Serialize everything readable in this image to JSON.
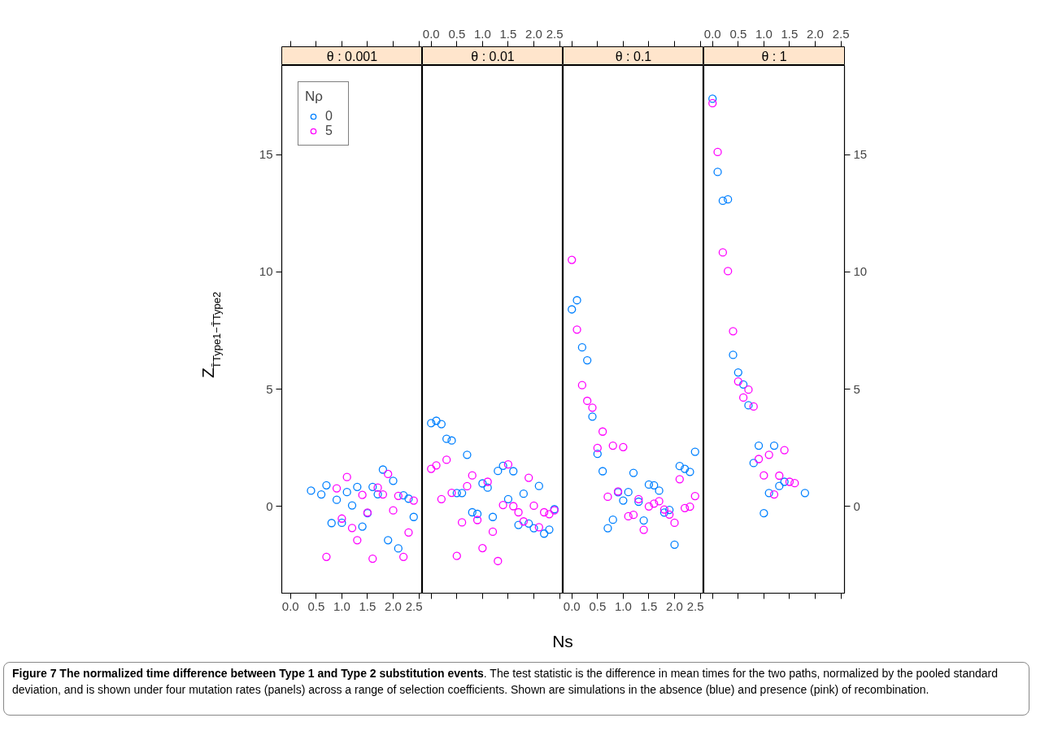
{
  "chart_data": [
    {
      "type": "scatter",
      "title": "θ : 0.001",
      "ylabel": "Z$_{T̄Type1−T̄Type2}$",
      "legend_title": "Nρ",
      "legend": "top left",
      "marker": "circle",
      "grid": false,
      "annotations": [
        "Figure 7 The normalized time difference between Type 1 and Type 2 substitution events",
        ". The test statistic is the difference in mean times for the two paths, normalized by the pooled standard deviation, and is shown under four mutation rates (panels) across a range of selection coefficients. Shown are simulations in the absence (blue) and presence (pink) of recombination."
      ],
      "xlim": [
        -0.17,
        2.57
      ],
      "xticks": [
        {
          "value": 0,
          "label": "0.0"
        },
        {
          "value": 0.5,
          "label": "0.5"
        },
        {
          "value": 1,
          "label": "1.0"
        },
        {
          "value": 1.5,
          "label": "1.5"
        },
        {
          "value": 2,
          "label": "2.0"
        },
        {
          "value": 2.5,
          "label": "2.5"
        }
      ],
      "ylim": [
        -3.7,
        18.8
      ],
      "yticks": [
        0,
        5,
        10,
        15
      ],
      "series": [
        {
          "name": "0",
          "color": "#0080ff",
          "x": [
            0.4,
            0.6,
            0.7,
            0.8,
            0.9,
            1.0,
            1.1,
            1.2,
            1.3,
            1.4,
            1.5,
            1.6,
            1.7,
            1.8,
            1.9,
            2.0,
            2.1,
            2.2,
            2.3,
            2.4
          ],
          "values": [
            0.67,
            0.51,
            0.9,
            -0.71,
            0.28,
            -0.7,
            0.61,
            0.04,
            0.83,
            -0.86,
            -0.29,
            0.83,
            0.52,
            1.57,
            -1.44,
            1.09,
            -1.79,
            0.47,
            0.33,
            -0.45
          ]
        },
        {
          "name": "5",
          "color": "#ff00ff",
          "x": [
            0.7,
            0.9,
            1.0,
            1.1,
            1.2,
            1.3,
            1.4,
            1.5,
            1.6,
            1.7,
            1.8,
            1.9,
            2.0,
            2.1,
            2.2,
            2.3,
            2.4
          ],
          "values": [
            -2.15,
            0.77,
            -0.52,
            1.25,
            -0.92,
            -1.44,
            0.49,
            -0.26,
            -2.23,
            0.8,
            0.51,
            1.38,
            -0.17,
            0.45,
            -2.15,
            -1.11,
            0.25
          ]
        }
      ]
    },
    {
      "type": "scatter",
      "title": "θ : 0.01",
      "xlabel": "Ns",
      "marker": "circle",
      "grid": false,
      "tick_labels": "x",
      "xlim": [
        -0.17,
        2.57
      ],
      "xticks": [
        {
          "value": 0,
          "label": "0.0"
        },
        {
          "value": 0.5,
          "label": "0.5"
        },
        {
          "value": 1,
          "label": "1.0"
        },
        {
          "value": 1.5,
          "label": "1.5"
        },
        {
          "value": 2,
          "label": "2.0"
        },
        {
          "value": 2.5,
          "label": "2.5"
        }
      ],
      "ylim": [
        -3.7,
        18.8
      ],
      "yticks": [
        0,
        5,
        10,
        15
      ],
      "series": [
        {
          "color": "#0080ff",
          "x": [
            0,
            0.1,
            0.2,
            0.3,
            0.4,
            0.5,
            0.6,
            0.7,
            0.8,
            0.9,
            1.0,
            1.1,
            1.2,
            1.3,
            1.4,
            1.5,
            1.6,
            1.7,
            1.8,
            1.9,
            2.0,
            2.1,
            2.2,
            2.3,
            2.4
          ],
          "values": [
            3.55,
            3.65,
            3.51,
            2.88,
            2.81,
            0.57,
            0.57,
            2.2,
            -0.25,
            -0.32,
            0.98,
            0.8,
            -0.45,
            1.51,
            1.73,
            0.31,
            1.5,
            -0.79,
            0.54,
            -0.73,
            -0.93,
            0.87,
            -1.16,
            -0.99,
            -0.12
          ]
        },
        {
          "color": "#ff00ff",
          "x": [
            0,
            0.1,
            0.2,
            0.3,
            0.4,
            0.5,
            0.6,
            0.7,
            0.8,
            0.9,
            1.0,
            1.1,
            1.2,
            1.3,
            1.4,
            1.5,
            1.6,
            1.7,
            1.8,
            1.9,
            2.0,
            2.1,
            2.2,
            2.3,
            2.4
          ],
          "values": [
            1.6,
            1.75,
            0.31,
            1.99,
            0.58,
            -2.11,
            -0.68,
            0.86,
            1.32,
            -0.58,
            -1.78,
            1.05,
            -1.08,
            -2.33,
            0.06,
            1.79,
            0.01,
            -0.25,
            -0.64,
            1.22,
            0.03,
            -0.89,
            -0.25,
            -0.33,
            -0.17
          ]
        }
      ]
    },
    {
      "type": "scatter",
      "title": "θ : 0.1",
      "marker": "circle",
      "grid": false,
      "tick_labels": "x",
      "xlim": [
        -0.17,
        2.57
      ],
      "xticks": [
        {
          "value": 0,
          "label": "0.0"
        },
        {
          "value": 0.5,
          "label": "0.5"
        },
        {
          "value": 1,
          "label": "1.0"
        },
        {
          "value": 1.5,
          "label": "1.5"
        },
        {
          "value": 2,
          "label": "2.0"
        },
        {
          "value": 2.5,
          "label": "2.5"
        }
      ],
      "ylim": [
        -3.7,
        18.8
      ],
      "yticks": [
        0,
        5,
        10,
        15
      ],
      "series": [
        {
          "color": "#0080ff",
          "x": [
            0,
            0.1,
            0.2,
            0.3,
            0.4,
            0.5,
            0.6,
            0.7,
            0.8,
            0.9,
            1.0,
            1.1,
            1.2,
            1.3,
            1.4,
            1.5,
            1.6,
            1.7,
            1.8,
            1.9,
            2.0,
            2.1,
            2.2,
            2.3,
            2.4
          ],
          "values": [
            8.4,
            8.79,
            6.78,
            6.23,
            3.83,
            2.24,
            1.5,
            -0.93,
            -0.57,
            0.6,
            0.25,
            0.61,
            1.43,
            0.2,
            -0.6,
            0.93,
            0.9,
            0.67,
            -0.26,
            -0.15,
            -1.63,
            1.72,
            1.6,
            1.47,
            2.33
          ]
        },
        {
          "color": "#ff00ff",
          "x": [
            0,
            0.1,
            0.2,
            0.3,
            0.4,
            0.5,
            0.6,
            0.7,
            0.8,
            0.9,
            1.0,
            1.1,
            1.2,
            1.3,
            1.4,
            1.5,
            1.6,
            1.7,
            1.8,
            1.9,
            2.0,
            2.1,
            2.2,
            2.3,
            2.4
          ],
          "values": [
            10.51,
            7.54,
            5.17,
            4.5,
            4.21,
            2.49,
            3.19,
            0.41,
            2.59,
            0.64,
            2.53,
            -0.42,
            -0.36,
            0.31,
            -1.0,
            0.0,
            0.12,
            0.22,
            -0.13,
            -0.35,
            -0.7,
            1.16,
            -0.07,
            -0.01,
            0.44
          ]
        }
      ]
    },
    {
      "type": "scatter",
      "title": "θ : 1",
      "marker": "circle",
      "grid": false,
      "xlim": [
        -0.17,
        2.57
      ],
      "xticks": [
        {
          "value": 0,
          "label": "0.0"
        },
        {
          "value": 0.5,
          "label": "0.5"
        },
        {
          "value": 1,
          "label": "1.0"
        },
        {
          "value": 1.5,
          "label": "1.5"
        },
        {
          "value": 2,
          "label": "2.0"
        },
        {
          "value": 2.5,
          "label": "2.5"
        }
      ],
      "ylim": [
        -3.7,
        18.8
      ],
      "yticks": [
        0,
        5,
        10,
        15
      ],
      "series": [
        {
          "color": "#0080ff",
          "x": [
            0,
            0.1,
            0.2,
            0.3,
            0.4,
            0.5,
            0.6,
            0.7,
            0.8,
            0.9,
            1.0,
            1.1,
            1.2,
            1.3,
            1.4,
            1.8
          ],
          "values": [
            17.38,
            14.26,
            13.03,
            13.09,
            6.46,
            5.71,
            5.2,
            4.31,
            1.85,
            2.59,
            -0.29,
            0.57,
            2.59,
            0.87,
            1.05,
            0.57
          ]
        },
        {
          "color": "#ff00ff",
          "x": [
            0,
            0.1,
            0.2,
            0.3,
            0.4,
            0.5,
            0.6,
            0.7,
            0.8,
            0.9,
            1.0,
            1.1,
            1.2,
            1.3,
            1.4,
            1.5,
            1.6
          ],
          "values": [
            17.19,
            15.11,
            10.83,
            10.03,
            7.47,
            5.33,
            4.64,
            4.98,
            4.26,
            2.02,
            1.32,
            2.2,
            0.51,
            1.31,
            2.4,
            1.05,
            0.99
          ]
        }
      ]
    }
  ]
}
